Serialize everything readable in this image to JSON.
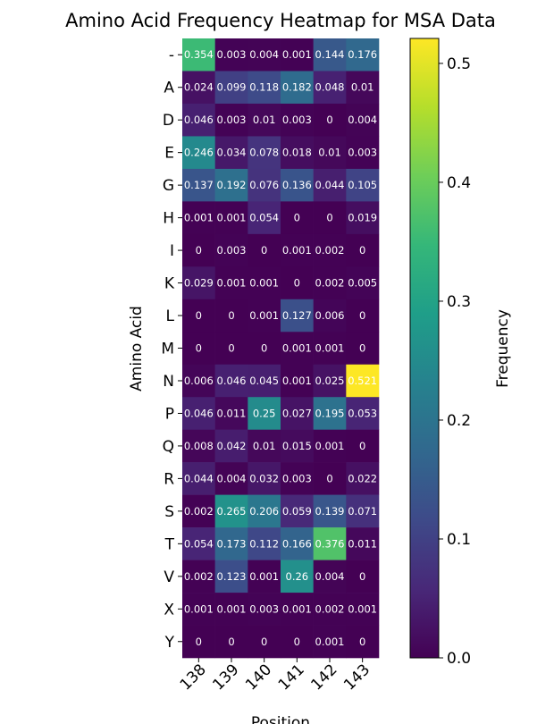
{
  "chart_data": {
    "type": "heatmap",
    "title": "Amino Acid Frequency Heatmap for MSA Data",
    "xlabel": "Position",
    "ylabel": "Amino Acid",
    "colorbar_label": "Frequency",
    "colormap": "viridis",
    "vmin": 0.0,
    "vmax": 0.521,
    "colorbar_ticks": [
      "0.0",
      "0.1",
      "0.2",
      "0.3",
      "0.4",
      "0.5"
    ],
    "x_categories": [
      "138",
      "139",
      "140",
      "141",
      "142",
      "143"
    ],
    "y_categories": [
      "-",
      "A",
      "D",
      "E",
      "G",
      "H",
      "I",
      "K",
      "L",
      "M",
      "N",
      "P",
      "Q",
      "R",
      "S",
      "T",
      "V",
      "X",
      "Y"
    ],
    "values": [
      [
        0.354,
        0.003,
        0.004,
        0.001,
        0.144,
        0.176
      ],
      [
        0.024,
        0.099,
        0.118,
        0.182,
        0.048,
        0.01
      ],
      [
        0.046,
        0.003,
        0.01,
        0.003,
        0.0,
        0.004
      ],
      [
        0.246,
        0.034,
        0.078,
        0.018,
        0.01,
        0.003
      ],
      [
        0.137,
        0.192,
        0.076,
        0.136,
        0.044,
        0.105
      ],
      [
        0.001,
        0.001,
        0.054,
        0.0,
        0.0,
        0.019
      ],
      [
        0.0,
        0.003,
        0.0,
        0.001,
        0.002,
        0.0
      ],
      [
        0.029,
        0.001,
        0.001,
        0.0,
        0.002,
        0.005
      ],
      [
        0.0,
        0.0,
        0.001,
        0.127,
        0.006,
        0.0
      ],
      [
        0.0,
        0.0,
        0.0,
        0.001,
        0.001,
        0.0
      ],
      [
        0.006,
        0.046,
        0.045,
        0.001,
        0.025,
        0.521
      ],
      [
        0.046,
        0.011,
        0.25,
        0.027,
        0.195,
        0.053
      ],
      [
        0.008,
        0.042,
        0.01,
        0.015,
        0.001,
        0.0
      ],
      [
        0.044,
        0.004,
        0.032,
        0.003,
        0.0,
        0.022
      ],
      [
        0.002,
        0.265,
        0.206,
        0.059,
        0.139,
        0.071
      ],
      [
        0.054,
        0.173,
        0.112,
        0.166,
        0.376,
        0.011
      ],
      [
        0.002,
        0.123,
        0.001,
        0.26,
        0.004,
        0.0
      ],
      [
        0.001,
        0.001,
        0.003,
        0.001,
        0.002,
        0.001
      ],
      [
        0.0,
        0.0,
        0.0,
        0.0,
        0.001,
        0.0
      ]
    ],
    "grid": false,
    "legend": "colorbar-right"
  }
}
